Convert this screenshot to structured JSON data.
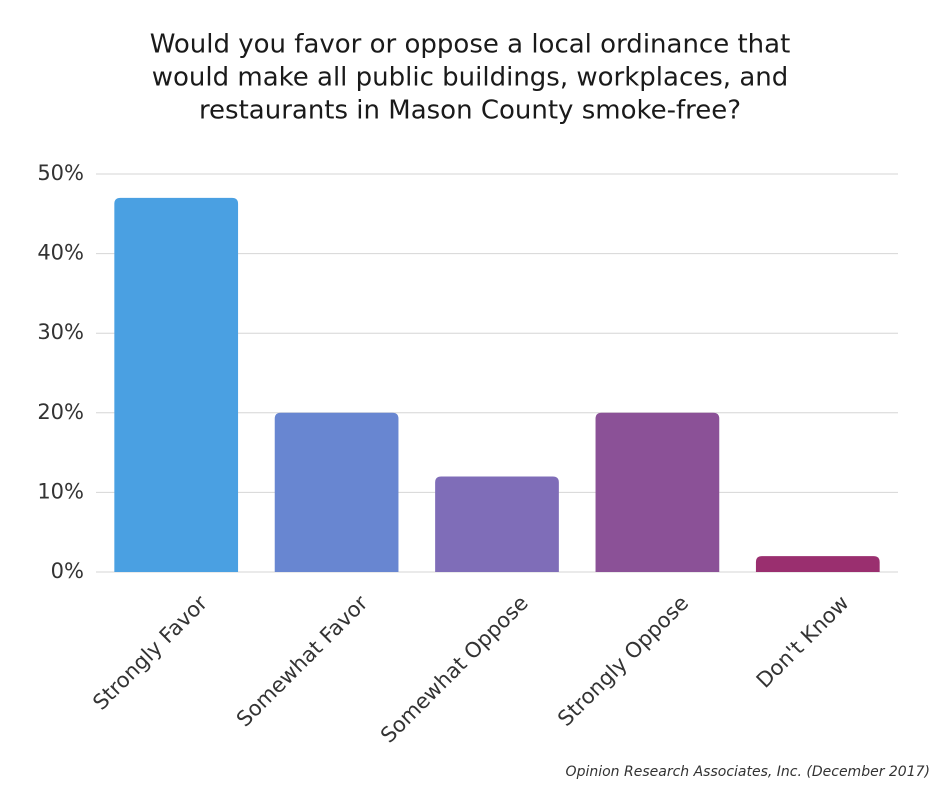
{
  "chart_data": {
    "type": "bar",
    "title": [
      "Would you favor or oppose a local ordinance that",
      "would make all public buildings, workplaces, and",
      "restaurants in Mason County smoke-free?"
    ],
    "categories": [
      "Strongly Favor",
      "Somewhat Favor",
      "Somewhat Oppose",
      "Strongly Oppose",
      "Don't Know"
    ],
    "values": [
      47,
      20,
      12,
      20,
      2
    ],
    "colors": [
      "#4aa0e2",
      "#6886d1",
      "#7f6db8",
      "#8b5197",
      "#9a2f6f"
    ],
    "ylim": [
      0,
      50
    ],
    "yticks": [
      {
        "value": 0,
        "label": "0%"
      },
      {
        "value": 10,
        "label": "10%"
      },
      {
        "value": 20,
        "label": "20%"
      },
      {
        "value": 30,
        "label": "30%"
      },
      {
        "value": 40,
        "label": "40%"
      },
      {
        "value": 50,
        "label": "50%"
      }
    ],
    "grid": true,
    "source": "Opinion Research Associates, Inc. (December 2017)"
  }
}
